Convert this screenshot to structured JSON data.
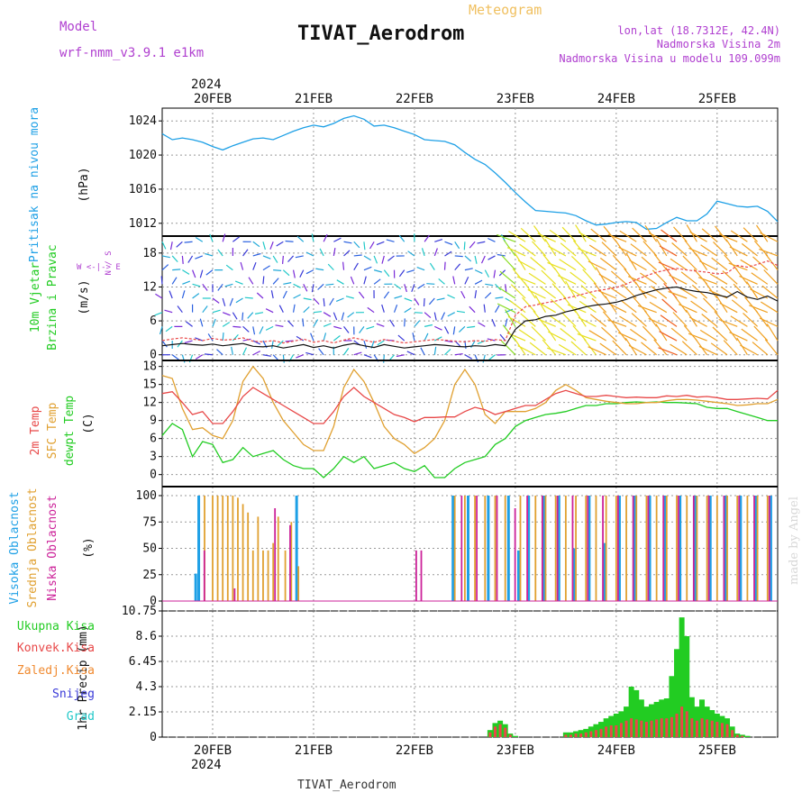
{
  "header": {
    "meteogram_label": "Meteogram",
    "title": "TIVAT_Aerodrom",
    "model_label": "Model",
    "model_name": "wrf-nmm_v3.9.1 e1km",
    "lonlat": "lon,lat (18.7312E, 42.4N)",
    "altitude": "Nadmorska Visina 2m",
    "model_altitude": "Nadmorska Visina u modelu 109.099m",
    "year_top": "2024",
    "year_bottom": "2024",
    "footer_title": "TIVAT_Aerodrom",
    "watermark": "made by Angel"
  },
  "colors": {
    "pressure": "#1ea0e6",
    "precip_total": "#22cc22",
    "precip_conv": "#e84848",
    "precip_strat": "#f08a30",
    "snow": "#3a3ad8",
    "hail": "#20c8c8",
    "temp2m": "#e84848",
    "sfc_temp": "#e0a030",
    "dewpt": "#22cc22",
    "cloud_high": "#1ea0e6",
    "cloud_mid": "#e0a030",
    "cloud_low": "#cc2299",
    "label_purple": "#b040d0",
    "title_orange": "#f0c060"
  },
  "chart_data": [
    {
      "type": "line",
      "panel": "pressure",
      "ylabel": "Pritisak na nivou mora",
      "unit": "(hPa)",
      "yticks": [
        "1024",
        "1020",
        "1016",
        "1012"
      ],
      "ylim": [
        1010.5,
        1025.5
      ],
      "xticks": [
        "20FEB",
        "21FEB",
        "22FEB",
        "23FEB",
        "24FEB",
        "25FEB"
      ],
      "xlim": [
        -0.5,
        5.6
      ],
      "x": [
        -0.5,
        -0.4,
        -0.3,
        -0.2,
        -0.1,
        0.0,
        0.1,
        0.2,
        0.3,
        0.4,
        0.5,
        0.6,
        0.7,
        0.8,
        0.9,
        1.0,
        1.1,
        1.2,
        1.3,
        1.4,
        1.5,
        1.6,
        1.7,
        1.8,
        1.9,
        2.0,
        2.1,
        2.2,
        2.3,
        2.4,
        2.5,
        2.6,
        2.7,
        2.8,
        2.9,
        3.0,
        3.1,
        3.2,
        3.3,
        3.4,
        3.5,
        3.6,
        3.7,
        3.8,
        3.9,
        4.0,
        4.1,
        4.2,
        4.3,
        4.4,
        4.5,
        4.6,
        4.7,
        4.8,
        4.9,
        5.0,
        5.1,
        5.2,
        5.3,
        5.4,
        5.5,
        5.6
      ],
      "values": [
        1022.5,
        1021.8,
        1022.0,
        1021.8,
        1021.5,
        1021.0,
        1020.6,
        1021.1,
        1021.5,
        1021.9,
        1022.0,
        1021.8,
        1022.3,
        1022.8,
        1023.2,
        1023.5,
        1023.3,
        1023.7,
        1024.3,
        1024.6,
        1024.2,
        1023.4,
        1023.5,
        1023.2,
        1022.8,
        1022.4,
        1021.8,
        1021.7,
        1021.6,
        1021.2,
        1020.3,
        1019.5,
        1018.9,
        1017.9,
        1016.8,
        1015.6,
        1014.5,
        1013.5,
        1013.4,
        1013.3,
        1013.2,
        1012.9,
        1012.3,
        1011.8,
        1011.9,
        1012.1,
        1012.2,
        1012.1,
        1011.3,
        1011.4,
        1012.1,
        1012.7,
        1012.3,
        1012.3,
        1013.1,
        1014.6,
        1014.3,
        1014.0,
        1013.9,
        1014.0,
        1013.4,
        1012.2
      ]
    },
    {
      "type": "line",
      "panel": "wind",
      "ylabel_line1": "10m Vjetar",
      "ylabel_line2": "Brzina i Pravac",
      "unit": "(m/s)",
      "compass": "W <-|-> E",
      "compass_ns": "N / S",
      "yticks": [
        "18",
        "12",
        "6",
        "0"
      ],
      "ylim": [
        -1,
        21
      ],
      "x": [
        -0.5,
        -0.4,
        -0.3,
        -0.2,
        -0.1,
        0.0,
        0.1,
        0.2,
        0.3,
        0.4,
        0.5,
        0.6,
        0.7,
        0.8,
        0.9,
        1.0,
        1.1,
        1.2,
        1.3,
        1.4,
        1.5,
        1.6,
        1.7,
        1.8,
        1.9,
        2.0,
        2.1,
        2.2,
        2.3,
        2.4,
        2.5,
        2.6,
        2.7,
        2.8,
        2.9,
        3.0,
        3.1,
        3.2,
        3.3,
        3.4,
        3.5,
        3.6,
        3.7,
        3.8,
        3.9,
        4.0,
        4.1,
        4.2,
        4.3,
        4.4,
        4.5,
        4.6,
        4.7,
        4.8,
        4.9,
        5.0,
        5.1,
        5.2,
        5.3,
        5.4,
        5.5,
        5.6
      ],
      "series": [
        {
          "name": "speed",
          "values": [
            1.6,
            1.8,
            2.0,
            1.8,
            1.7,
            1.9,
            1.6,
            1.8,
            2.0,
            1.5,
            1.4,
            1.6,
            1.2,
            1.5,
            1.8,
            1.3,
            1.6,
            1.2,
            1.7,
            2.0,
            1.6,
            1.3,
            1.8,
            1.5,
            1.2,
            1.4,
            1.6,
            1.8,
            1.7,
            1.5,
            1.4,
            1.6,
            1.5,
            1.8,
            1.6,
            4.5,
            6.0,
            6.2,
            6.8,
            7.0,
            7.6,
            8.0,
            8.5,
            8.8,
            9.0,
            9.3,
            9.8,
            10.5,
            11.0,
            11.5,
            11.8,
            12.0,
            11.5,
            11.2,
            11.0,
            10.6,
            10.2,
            11.2,
            10.2,
            9.8,
            10.4,
            9.5
          ]
        },
        {
          "name": "gust",
          "values": [
            2.5,
            2.8,
            3.0,
            2.8,
            2.5,
            2.9,
            2.6,
            2.7,
            3.0,
            2.4,
            2.3,
            2.5,
            2.1,
            2.4,
            2.8,
            2.2,
            2.5,
            2.1,
            2.6,
            3.0,
            2.6,
            2.2,
            2.7,
            2.4,
            2.1,
            2.3,
            2.5,
            2.7,
            2.6,
            2.4,
            2.3,
            2.5,
            2.4,
            2.7,
            2.5,
            7.0,
            8.5,
            8.8,
            9.2,
            9.5,
            10.0,
            10.4,
            10.9,
            11.3,
            11.6,
            11.9,
            12.5,
            13.3,
            14.0,
            14.6,
            15.0,
            15.3,
            15.0,
            14.8,
            14.6,
            14.3,
            14.5,
            15.8,
            15.5,
            16.0,
            16.6,
            15.8
          ]
        }
      ]
    },
    {
      "type": "line",
      "panel": "temperature",
      "ylabel_2m": "2m Temp",
      "ylabel_sfc": "SFC Temp",
      "ylabel_dew": "dewpt Temp",
      "unit": "(C)",
      "yticks": [
        "18",
        "15",
        "12",
        "9",
        "6",
        "3",
        "0"
      ],
      "ylim": [
        -2,
        19
      ],
      "x": [
        -0.5,
        -0.4,
        -0.3,
        -0.2,
        -0.1,
        0.0,
        0.1,
        0.2,
        0.3,
        0.4,
        0.5,
        0.6,
        0.7,
        0.8,
        0.9,
        1.0,
        1.1,
        1.2,
        1.3,
        1.4,
        1.5,
        1.6,
        1.7,
        1.8,
        1.9,
        2.0,
        2.1,
        2.2,
        2.3,
        2.4,
        2.5,
        2.6,
        2.7,
        2.8,
        2.9,
        3.0,
        3.1,
        3.2,
        3.3,
        3.4,
        3.5,
        3.6,
        3.7,
        3.8,
        3.9,
        4.0,
        4.1,
        4.2,
        4.3,
        4.4,
        4.5,
        4.6,
        4.7,
        4.8,
        4.9,
        5.0,
        5.1,
        5.2,
        5.3,
        5.4,
        5.5,
        5.6
      ],
      "series": [
        {
          "name": "2m Temp",
          "values": [
            13.5,
            13.8,
            12.0,
            10.0,
            10.5,
            8.5,
            8.5,
            10.5,
            13.0,
            14.5,
            13.5,
            12.5,
            11.5,
            10.5,
            9.5,
            8.5,
            8.5,
            10.5,
            13.0,
            14.5,
            13.0,
            12.0,
            11.0,
            10.0,
            9.5,
            8.8,
            9.5,
            9.5,
            9.6,
            9.6,
            10.5,
            11.2,
            10.8,
            10.0,
            10.5,
            11.0,
            11.5,
            11.5,
            12.5,
            13.5,
            14.0,
            13.5,
            13.0,
            13.0,
            13.2,
            13.0,
            12.8,
            12.9,
            12.8,
            12.8,
            13.1,
            13.0,
            13.2,
            12.9,
            13.0,
            12.8,
            12.5,
            12.5,
            12.6,
            12.7,
            12.6,
            14.0
          ]
        },
        {
          "name": "SFC Temp",
          "values": [
            16.5,
            16.0,
            11.0,
            7.5,
            7.8,
            6.5,
            6.0,
            9.0,
            15.5,
            18.0,
            16.0,
            12.0,
            9.0,
            7.0,
            5.0,
            4.0,
            4.0,
            8.0,
            14.5,
            17.5,
            15.5,
            12.0,
            8.0,
            6.0,
            5.0,
            3.5,
            4.5,
            6.0,
            9.0,
            15.0,
            17.5,
            15.0,
            10.0,
            8.5,
            10.5,
            10.5,
            10.5,
            11.0,
            12.0,
            14.0,
            15.0,
            14.0,
            12.8,
            12.5,
            12.2,
            12.0,
            11.8,
            11.8,
            12.0,
            12.0,
            12.3,
            12.5,
            12.5,
            12.4,
            12.2,
            12.0,
            11.8,
            11.5,
            11.6,
            11.8,
            11.8,
            12.5
          ]
        },
        {
          "name": "dewpt Temp",
          "values": [
            6.5,
            8.5,
            7.5,
            3.0,
            5.5,
            5.0,
            2.0,
            2.5,
            4.5,
            3.0,
            3.5,
            4.0,
            2.5,
            1.5,
            1.0,
            1.0,
            -0.5,
            1.0,
            3.0,
            2.0,
            3.0,
            1.0,
            1.5,
            2.0,
            1.0,
            0.5,
            1.5,
            -0.5,
            -0.5,
            1.0,
            2.0,
            2.5,
            3.0,
            5.0,
            6.0,
            8.0,
            9.0,
            9.5,
            10.0,
            10.2,
            10.5,
            11.0,
            11.5,
            11.5,
            11.8,
            11.8,
            12.0,
            12.1,
            12.0,
            12.1,
            12.0,
            12.0,
            11.9,
            11.8,
            11.2,
            11.0,
            11.0,
            10.5,
            10.0,
            9.5,
            9.0,
            9.0
          ]
        }
      ]
    },
    {
      "type": "bar",
      "panel": "clouds",
      "ylabel_high": "Visoka Oblacnost",
      "ylabel_mid": "Srednja Oblacnost",
      "ylabel_low": "Niska Oblacnost",
      "unit": "(%)",
      "yticks": [
        "100",
        "75",
        "50",
        "25",
        "0"
      ],
      "ylim": [
        0,
        100
      ],
      "series": [
        {
          "name": "Visoka Oblacnost",
          "x": [
            -0.15,
            -0.12,
            0.85,
            2.4,
            2.55,
            2.75,
            2.95,
            3.05,
            3.15,
            3.3,
            3.45,
            3.6,
            3.75,
            3.9,
            4.05,
            4.2,
            4.35,
            4.5,
            4.65,
            4.8,
            4.95,
            5.1,
            5.25,
            5.4,
            5.55
          ],
          "values": [
            26,
            100,
            100,
            100,
            100,
            100,
            100,
            48,
            100,
            100,
            100,
            50,
            100,
            55,
            100,
            100,
            100,
            100,
            100,
            100,
            100,
            100,
            100,
            100,
            100
          ]
        },
        {
          "name": "Srednja Oblacnost",
          "x": [
            -0.08,
            0.0,
            0.05,
            0.1,
            0.15,
            0.2,
            0.25,
            0.3,
            0.35,
            0.4,
            0.45,
            0.5,
            0.55,
            0.6,
            0.65,
            0.72,
            0.78,
            0.85,
            2.4,
            2.5,
            2.6,
            2.7,
            2.8,
            2.9,
            3.05,
            3.2,
            3.3,
            3.4,
            3.5,
            3.6,
            3.7,
            3.8,
            3.9,
            4.0,
            4.1,
            4.2,
            4.3,
            4.4,
            4.5,
            4.6,
            4.7,
            4.8,
            4.9,
            5.0,
            5.1,
            5.2,
            5.3,
            5.4,
            5.5
          ],
          "values": [
            100,
            100,
            100,
            100,
            100,
            100,
            98,
            92,
            84,
            48,
            80,
            48,
            48,
            55,
            80,
            48,
            75,
            33,
            100,
            100,
            100,
            100,
            100,
            100,
            100,
            100,
            100,
            100,
            100,
            100,
            100,
            100,
            100,
            100,
            100,
            100,
            100,
            100,
            100,
            100,
            100,
            100,
            100,
            100,
            100,
            100,
            100,
            100,
            100
          ]
        },
        {
          "name": "Niska Oblacnost",
          "x": [
            -0.1,
            0.2,
            0.6,
            0.75,
            2.0,
            2.05,
            2.45,
            2.6,
            2.8,
            2.98,
            3.1,
            3.25,
            3.4,
            3.55,
            3.7,
            3.85,
            4.0,
            4.15,
            4.3,
            4.45,
            4.6,
            4.75,
            4.9,
            5.05,
            5.2,
            5.35,
            5.5
          ],
          "values": [
            48,
            12,
            88,
            72,
            48,
            48,
            100,
            100,
            100,
            88,
            100,
            100,
            100,
            100,
            100,
            100,
            100,
            100,
            100,
            100,
            100,
            100,
            100,
            100,
            100,
            100,
            100
          ]
        }
      ]
    },
    {
      "type": "bar",
      "panel": "precipitation",
      "ylabel": "1hr Precip (mm)",
      "legend": [
        "Ukupna Kisa",
        "Konvek.Kisa",
        "Zaledj.Kisa",
        "Snijeg",
        "Grad"
      ],
      "yticks": [
        "10.75",
        "8.6",
        "6.45",
        "4.3",
        "2.15",
        "0"
      ],
      "ylim": [
        0,
        10.75
      ],
      "x": [
        2.75,
        2.8,
        2.85,
        2.9,
        2.95,
        3.0,
        3.5,
        3.55,
        3.6,
        3.65,
        3.7,
        3.75,
        3.8,
        3.85,
        3.9,
        3.95,
        4.0,
        4.05,
        4.1,
        4.15,
        4.2,
        4.25,
        4.3,
        4.35,
        4.4,
        4.45,
        4.5,
        4.55,
        4.6,
        4.65,
        4.7,
        4.75,
        4.8,
        4.85,
        4.9,
        4.95,
        5.0,
        5.05,
        5.1,
        5.15,
        5.2,
        5.25,
        5.3
      ],
      "series": [
        {
          "name": "Ukupna Kisa",
          "values": [
            0.6,
            1.2,
            1.4,
            1.1,
            0.3,
            0.1,
            0.4,
            0.4,
            0.5,
            0.6,
            0.7,
            0.9,
            1.1,
            1.3,
            1.6,
            1.8,
            2.0,
            2.2,
            2.6,
            4.3,
            4.0,
            3.2,
            2.6,
            2.8,
            3.0,
            3.2,
            3.3,
            5.2,
            7.5,
            10.2,
            8.6,
            3.4,
            2.6,
            3.2,
            2.6,
            2.3,
            2.0,
            1.8,
            1.6,
            0.9,
            0.3,
            0.2,
            0.1
          ]
        },
        {
          "name": "Konvek.Kisa",
          "values": [
            0.4,
            0.9,
            1.1,
            0.8,
            0.2,
            0.0,
            0.2,
            0.2,
            0.3,
            0.3,
            0.4,
            0.5,
            0.6,
            0.7,
            0.9,
            1.0,
            1.0,
            1.2,
            1.4,
            1.6,
            1.5,
            1.4,
            1.3,
            1.4,
            1.5,
            1.6,
            1.6,
            1.7,
            2.0,
            2.6,
            2.2,
            1.6,
            1.4,
            1.6,
            1.5,
            1.4,
            1.3,
            1.2,
            1.1,
            0.6,
            0.2,
            0.1,
            0.0
          ]
        }
      ]
    }
  ]
}
